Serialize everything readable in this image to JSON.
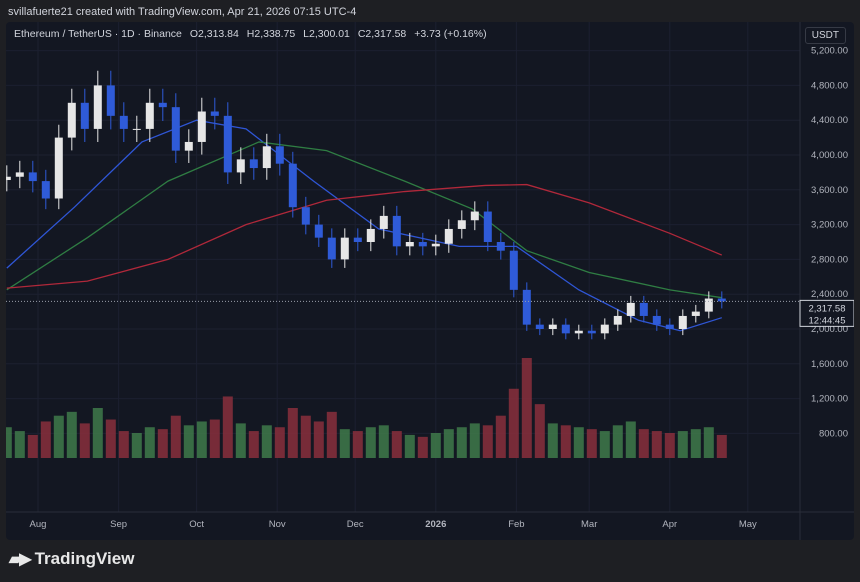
{
  "credit": "svillafuerte21 created with TradingView.com, Apr 21, 2026 07:15 UTC-4",
  "legend": {
    "symbol": "Ethereum / TetherUS · 1D · Binance",
    "open": "O2,313.84",
    "high": "H2,338.75",
    "low": "L2,300.01",
    "close": "C2,317.58",
    "change": "+3.73 (+0.16%)"
  },
  "currency": "USDT",
  "price_label": "2,317.58",
  "countdown": "12:44:45",
  "logo": "TradingView",
  "colors": {
    "up": "#e6e6e6",
    "down": "#2f5bd8",
    "vol_up": "#3f7a4a",
    "vol_down": "#8a2f3c",
    "ma_blue": "#2f56d6",
    "ma_green": "#2f7d43",
    "ma_red": "#b0283a",
    "bg": "#131722"
  },
  "chart_data": {
    "type": "candlestick",
    "ylim": [
      400,
      5500
    ],
    "y_ticks": [
      "5,200.00",
      "4,800.00",
      "4,400.00",
      "4,000.00",
      "3,600.00",
      "3,200.00",
      "2,800.00",
      "2,400.00",
      "2,000.00",
      "1,600.00",
      "1,200.00",
      "800.00"
    ],
    "y_tick_values": [
      5200,
      4800,
      4400,
      4000,
      3600,
      3200,
      2800,
      2400,
      2000,
      1600,
      1200,
      800
    ],
    "x_ticks": [
      {
        "label": "Aug",
        "date": "2025-08-01"
      },
      {
        "label": "Sep",
        "date": "2025-09-01"
      },
      {
        "label": "Oct",
        "date": "2025-10-01"
      },
      {
        "label": "Nov",
        "date": "2025-11-01"
      },
      {
        "label": "Dec",
        "date": "2025-12-01"
      },
      {
        "label": "2026",
        "date": "2026-01-01"
      },
      {
        "label": "Feb",
        "date": "2026-02-01"
      },
      {
        "label": "Mar",
        "date": "2026-03-01"
      },
      {
        "label": "Apr",
        "date": "2026-04-01"
      },
      {
        "label": "May",
        "date": "2026-05-01"
      }
    ],
    "dates": [
      "2025-07-20",
      "2025-07-25",
      "2025-07-30",
      "2025-08-04",
      "2025-08-09",
      "2025-08-14",
      "2025-08-19",
      "2025-08-24",
      "2025-08-29",
      "2025-09-03",
      "2025-09-08",
      "2025-09-13",
      "2025-09-18",
      "2025-09-23",
      "2025-09-28",
      "2025-10-03",
      "2025-10-08",
      "2025-10-13",
      "2025-10-18",
      "2025-10-23",
      "2025-10-28",
      "2025-11-02",
      "2025-11-07",
      "2025-11-12",
      "2025-11-17",
      "2025-11-22",
      "2025-11-27",
      "2025-12-02",
      "2025-12-07",
      "2025-12-12",
      "2025-12-17",
      "2025-12-22",
      "2025-12-27",
      "2026-01-01",
      "2026-01-06",
      "2026-01-11",
      "2026-01-16",
      "2026-01-21",
      "2026-01-26",
      "2026-01-31",
      "2026-02-05",
      "2026-02-10",
      "2026-02-15",
      "2026-02-20",
      "2026-02-25",
      "2026-03-02",
      "2026-03-07",
      "2026-03-12",
      "2026-03-17",
      "2026-03-22",
      "2026-03-27",
      "2026-04-01",
      "2026-04-06",
      "2026-04-11",
      "2026-04-16",
      "2026-04-21"
    ],
    "close": [
      3750,
      3800,
      3700,
      3500,
      4200,
      4600,
      4300,
      4800,
      4450,
      4300,
      4300,
      4600,
      4550,
      4050,
      4150,
      4500,
      4450,
      3800,
      3950,
      3850,
      4100,
      3900,
      3400,
      3200,
      3050,
      2800,
      3050,
      3000,
      3150,
      3300,
      2950,
      3000,
      2950,
      2980,
      3150,
      3250,
      3350,
      3000,
      2900,
      2450,
      2050,
      2000,
      2050,
      1950,
      1980,
      1950,
      2050,
      2150,
      2300,
      2150,
      2050,
      2000,
      2150,
      2200,
      2350,
      2317.58
    ],
    "volume": [
      80,
      70,
      60,
      95,
      110,
      120,
      90,
      130,
      100,
      70,
      65,
      80,
      75,
      110,
      85,
      95,
      100,
      160,
      90,
      70,
      85,
      80,
      130,
      110,
      95,
      120,
      75,
      70,
      80,
      85,
      70,
      60,
      55,
      65,
      75,
      80,
      90,
      85,
      110,
      180,
      260,
      140,
      90,
      85,
      80,
      75,
      70,
      85,
      95,
      75,
      70,
      65,
      70,
      75,
      80,
      60
    ],
    "moving_averages": [
      {
        "color": "blue",
        "dates": [
          "2025-07-20",
          "2025-08-15",
          "2025-09-10",
          "2025-10-01",
          "2025-10-20",
          "2025-11-15",
          "2025-12-10",
          "2026-01-10",
          "2026-02-01",
          "2026-02-25",
          "2026-03-20",
          "2026-04-05",
          "2026-04-21"
        ],
        "values": [
          2700,
          3400,
          4150,
          4400,
          4300,
          3700,
          3150,
          2950,
          2950,
          2450,
          2100,
          1980,
          2130
        ]
      },
      {
        "color": "green",
        "dates": [
          "2025-07-20",
          "2025-08-20",
          "2025-09-20",
          "2025-10-25",
          "2025-11-20",
          "2025-12-20",
          "2026-01-15",
          "2026-02-05",
          "2026-03-01",
          "2026-04-01",
          "2026-04-21"
        ],
        "values": [
          2450,
          3050,
          3700,
          4150,
          4050,
          3700,
          3380,
          2900,
          2650,
          2450,
          2360
        ]
      },
      {
        "color": "red",
        "dates": [
          "2025-07-20",
          "2025-08-20",
          "2025-09-20",
          "2025-10-20",
          "2025-11-20",
          "2025-12-20",
          "2026-01-20",
          "2026-02-05",
          "2026-03-01",
          "2026-04-01",
          "2026-04-21"
        ],
        "values": [
          2470,
          2550,
          2800,
          3200,
          3480,
          3580,
          3650,
          3660,
          3450,
          3100,
          2850
        ]
      }
    ]
  }
}
